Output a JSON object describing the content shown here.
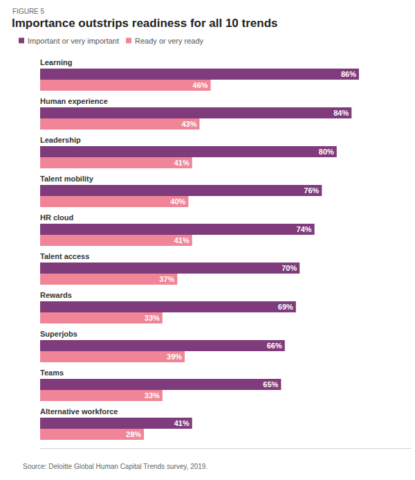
{
  "chart_data": {
    "type": "bar",
    "orientation": "horizontal",
    "subtitle": "FIGURE 5",
    "title": "Importance outstrips readiness for all 10 trends",
    "annotations": [
      "Source: Deloitte Global Human Capital Trends survey, 2019."
    ],
    "categories": [
      "Learning",
      "Human experience",
      "Leadership",
      "Talent mobility",
      "HR cloud",
      "Talent access",
      "Rewards",
      "Superjobs",
      "Teams",
      "Alternative workforce"
    ],
    "series": [
      {
        "name": "Important or very important",
        "color": "#7f3b7b",
        "values": [
          86,
          84,
          80,
          76,
          74,
          70,
          69,
          66,
          65,
          41
        ],
        "value_labels": [
          "86%",
          "84%",
          "80%",
          "76%",
          "74%",
          "70%",
          "69%",
          "66%",
          "65%",
          "41%"
        ]
      },
      {
        "name": "Ready or very ready",
        "color": "#ef8596",
        "values": [
          46,
          43,
          41,
          40,
          41,
          37,
          33,
          39,
          33,
          28
        ],
        "value_labels": [
          "46%",
          "43%",
          "41%",
          "40%",
          "41%",
          "37%",
          "33%",
          "39%",
          "33%",
          "28%"
        ]
      }
    ],
    "xlim": [
      0,
      100
    ],
    "data_labels": true,
    "tick_labels": "y",
    "grid": false,
    "legend": "top-left"
  }
}
